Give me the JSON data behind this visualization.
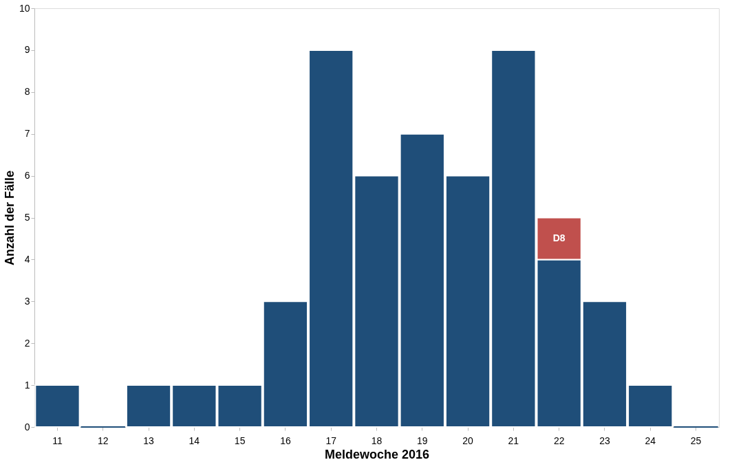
{
  "chart_data": {
    "type": "bar",
    "stacked": true,
    "xlabel": "Meldewoche 2016",
    "ylabel": "Anzahl der Fälle",
    "categories": [
      "11",
      "12",
      "13",
      "14",
      "15",
      "16",
      "17",
      "18",
      "19",
      "20",
      "21",
      "22",
      "23",
      "24",
      "25"
    ],
    "series": [
      {
        "color": "#1f4e79",
        "values": [
          1,
          0,
          1,
          1,
          1,
          3,
          9,
          6,
          7,
          6,
          9,
          4,
          3,
          1,
          0
        ]
      },
      {
        "name": "D8",
        "color": "#c0504d",
        "values": [
          null,
          null,
          null,
          null,
          null,
          null,
          null,
          null,
          null,
          null,
          null,
          1,
          null,
          null,
          null
        ]
      }
    ],
    "ylim": [
      0,
      10
    ],
    "yticks": [
      0,
      1,
      2,
      3,
      4,
      5,
      6,
      7,
      8,
      9,
      10
    ],
    "grid": false,
    "legend": false
  }
}
